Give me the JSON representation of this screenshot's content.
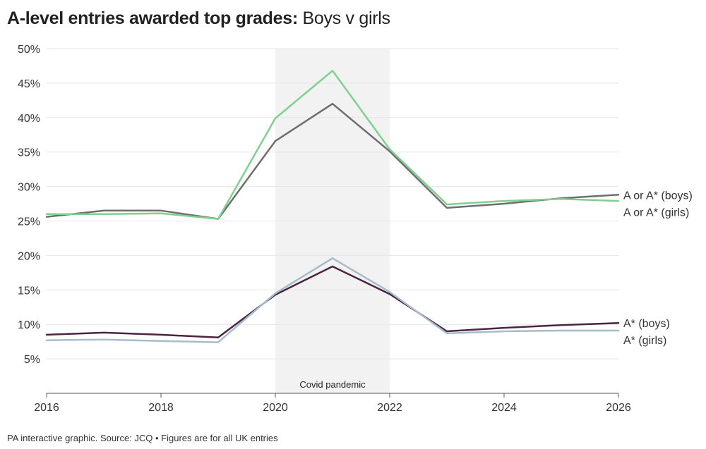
{
  "header": {
    "title_bold": "A-level entries awarded top grades",
    "title_sep": ":",
    "title_rest": " Boys v girls"
  },
  "footer": {
    "text": "PA interactive graphic. Source: JCQ • Figures are for all UK entries"
  },
  "chart_data": {
    "type": "line",
    "x_ticks": [
      "2016",
      "2018",
      "2020",
      "2022",
      "2024",
      "2026"
    ],
    "y_ticks": [
      "5%",
      "10%",
      "15%",
      "20%",
      "25%",
      "30%",
      "35%",
      "40%",
      "45%",
      "50%"
    ],
    "xlim": [
      2016,
      2026
    ],
    "ylim": [
      0,
      50
    ],
    "grid": true,
    "shaded_period": {
      "from": 2020,
      "to": 2022,
      "label": "Covid pandemic",
      "color": "#f2f2f2"
    },
    "series": [
      {
        "name": "A or A* (boys)",
        "color": "#6e6e6e",
        "x": [
          2016,
          2017,
          2018,
          2019,
          2020,
          2021,
          2022,
          2023,
          2024,
          2025,
          2026
        ],
        "y": [
          25.6,
          26.5,
          26.5,
          25.3,
          36.6,
          42.0,
          35.1,
          26.9,
          27.5,
          28.3,
          28.8
        ]
      },
      {
        "name": "A or A* (girls)",
        "color": "#7fcf8f",
        "x": [
          2016,
          2017,
          2018,
          2019,
          2020,
          2021,
          2022,
          2023,
          2024,
          2025,
          2026
        ],
        "y": [
          26.0,
          26.0,
          26.1,
          25.3,
          39.9,
          46.8,
          35.4,
          27.4,
          27.9,
          28.2,
          27.9
        ]
      },
      {
        "name": "A* (boys)",
        "color": "#4a2440",
        "x": [
          2016,
          2017,
          2018,
          2019,
          2020,
          2021,
          2022,
          2023,
          2024,
          2025,
          2026
        ],
        "y": [
          8.5,
          8.8,
          8.5,
          8.1,
          14.3,
          18.4,
          14.4,
          9.0,
          9.5,
          9.9,
          10.2
        ]
      },
      {
        "name": "A* (girls)",
        "color": "#a7bccb",
        "x": [
          2016,
          2017,
          2018,
          2019,
          2020,
          2021,
          2022,
          2023,
          2024,
          2025,
          2026
        ],
        "y": [
          7.7,
          7.8,
          7.6,
          7.4,
          14.5,
          19.6,
          14.7,
          8.7,
          9.0,
          9.1,
          9.1
        ]
      }
    ]
  }
}
